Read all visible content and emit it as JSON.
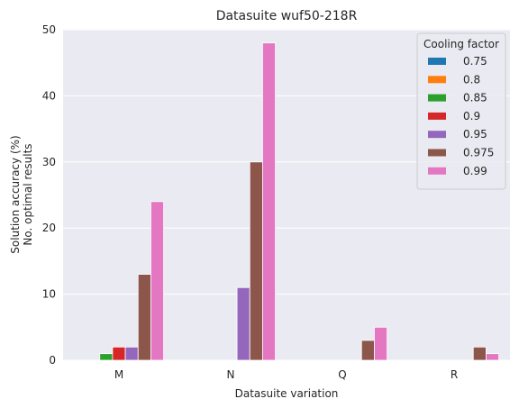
{
  "chart_data": {
    "type": "bar",
    "title": "Datasuite wuf50-218R",
    "xlabel": "Datasuite variation",
    "ylabel_lines": [
      "Solution accuracy (%)",
      "No. optimal results"
    ],
    "categories": [
      "M",
      "N",
      "Q",
      "R"
    ],
    "ylim": [
      0,
      50
    ],
    "yticks": [
      0,
      10,
      20,
      30,
      40,
      50
    ],
    "grid": true,
    "legend": {
      "title": "Cooling factor",
      "placement": "top-right"
    },
    "series": [
      {
        "name": "0.75",
        "color": "#1f77b4",
        "values": [
          0,
          0,
          0,
          0
        ]
      },
      {
        "name": "0.8",
        "color": "#ff7f0e",
        "values": [
          0,
          0,
          0,
          0
        ]
      },
      {
        "name": "0.85",
        "color": "#2ca02c",
        "values": [
          1,
          0,
          0,
          0
        ]
      },
      {
        "name": "0.9",
        "color": "#d62728",
        "values": [
          2,
          0,
          0,
          0
        ]
      },
      {
        "name": "0.95",
        "color": "#9467bd",
        "values": [
          2,
          11,
          0,
          0
        ]
      },
      {
        "name": "0.975",
        "color": "#8c564b",
        "values": [
          13,
          30,
          3,
          2
        ]
      },
      {
        "name": "0.99",
        "color": "#e377c2",
        "values": [
          24,
          48,
          5,
          1
        ]
      }
    ]
  }
}
